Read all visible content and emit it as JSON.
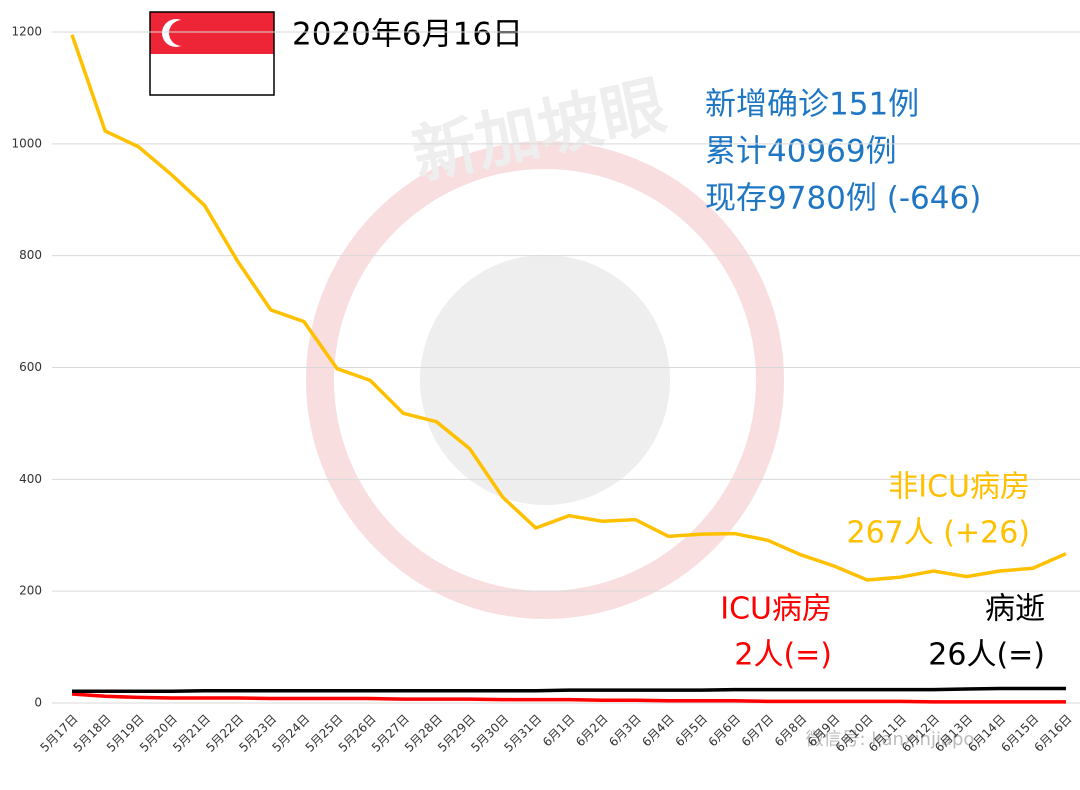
{
  "chart_data": {
    "type": "line",
    "title": "2020年6月16日",
    "stats": [
      "新增确诊151例",
      "累计40969例",
      "现存9780例 (-646)"
    ],
    "watermark": "新加坡眼",
    "wechat": "微信号: kanxinjiapo",
    "categories": [
      "5月17日",
      "5月18日",
      "5月19日",
      "5月20日",
      "5月21日",
      "5月22日",
      "5月23日",
      "5月24日",
      "5月25日",
      "5月26日",
      "5月27日",
      "5月28日",
      "5月29日",
      "5月30日",
      "5月31日",
      "6月1日",
      "6月2日",
      "6月3日",
      "6月4日",
      "6月5日",
      "6月6日",
      "6月7日",
      "6月8日",
      "6月9日",
      "6月10日",
      "6月11日",
      "6月12日",
      "6月13日",
      "6月14日",
      "6月15日",
      "6月16日"
    ],
    "series": [
      {
        "name": "非ICU病房",
        "note": "267人 (+26)",
        "color": "#ffc000",
        "values": [
          1195,
          1023,
          995,
          945,
          890,
          790,
          703,
          682,
          598,
          577,
          518,
          503,
          455,
          368,
          313,
          335,
          325,
          328,
          298,
          302,
          303,
          291,
          265,
          245,
          220,
          225,
          236,
          226,
          236,
          241,
          267
        ]
      },
      {
        "name": "ICU病房",
        "note": "2人(=)",
        "color": "#ff0000",
        "values": [
          16,
          12,
          10,
          9,
          9,
          9,
          8,
          8,
          8,
          8,
          7,
          7,
          7,
          6,
          6,
          6,
          5,
          5,
          4,
          4,
          4,
          3,
          3,
          3,
          3,
          3,
          2,
          2,
          2,
          2,
          2
        ]
      },
      {
        "name": "病逝",
        "note": "26人(=)",
        "color": "#000000",
        "values": [
          21,
          21,
          21,
          21,
          22,
          22,
          22,
          22,
          22,
          22,
          22,
          22,
          22,
          22,
          22,
          23,
          23,
          23,
          23,
          23,
          24,
          24,
          24,
          24,
          24,
          24,
          24,
          25,
          26,
          26,
          26
        ]
      }
    ],
    "ylim": [
      0,
      1200
    ],
    "yticks": [
      0,
      200,
      400,
      600,
      800,
      1000,
      1200
    ],
    "grid": true
  }
}
